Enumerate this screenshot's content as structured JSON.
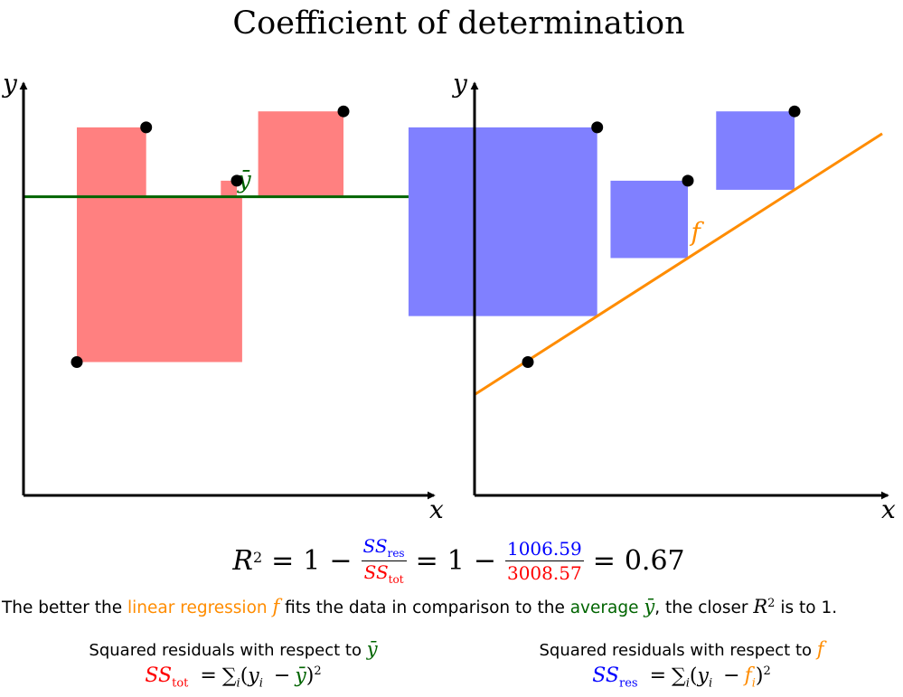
{
  "title": "Coefficient of determination",
  "colors": {
    "tot": "#ff0000",
    "tot_fill": "#ff8080",
    "res": "#0000ff",
    "res_fill": "#8080ff",
    "mean": "#006400",
    "fit": "#ff8c00",
    "axis": "#000000"
  },
  "axes": {
    "x_label": "x",
    "y_label": "y"
  },
  "left_panel": {
    "mean_label": "ȳ"
  },
  "right_panel": {
    "fit_label": "f"
  },
  "formula": {
    "r2_lhs": "R",
    "sup2": "2",
    "eq": "=",
    "one": "1",
    "minus": "−",
    "ss": "SS",
    "res_sub": "res",
    "tot_sub": "tot",
    "res_value": "1006.59",
    "tot_value": "3008.57",
    "result": "0.67"
  },
  "sentence": {
    "part1": "The better the ",
    "linear_regression": "linear regression",
    "f": "f",
    "part2": " fits the data in comparison to the ",
    "average": "average",
    "ybar": "ȳ",
    "part3": ", the closer ",
    "r": "R",
    "sup": "2",
    "part4": " is to 1."
  },
  "captions": {
    "left_text": "Squared residuals with respect to ",
    "left_symbol": "ȳ",
    "right_text": "Squared residuals with respect to ",
    "right_symbol": "f"
  },
  "definitions": {
    "tot_lhs": "SS",
    "tot_sub": "tot",
    "res_lhs": "SS",
    "res_sub": "res",
    "eq": "=",
    "sum": "∑",
    "i": "i",
    "open": "(",
    "y": "y",
    "yi_sub": "i",
    "minus": "−",
    "ybar": "ȳ",
    "f": "f",
    "fi_sub": "i",
    "close": ")",
    "sq": "2"
  },
  "chart_data": {
    "type": "scatter",
    "points": [
      {
        "x": 1,
        "y": 2
      },
      {
        "x": 2.3,
        "y": 6.4
      },
      {
        "x": 4,
        "y": 5.4
      },
      {
        "x": 6,
        "y": 6.7
      }
    ],
    "mean_y": 5.1,
    "fit": {
      "slope": 0.64,
      "intercept": 1.39
    },
    "xlim": [
      0,
      7.5
    ],
    "ylim": [
      -0.5,
      10
    ]
  }
}
